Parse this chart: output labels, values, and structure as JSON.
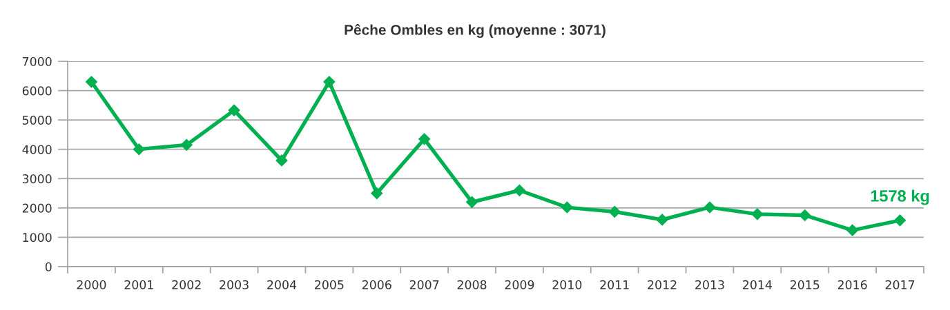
{
  "chart_data": {
    "type": "line",
    "title": "Pêche Ombles en kg (moyenne : 3071)",
    "categories": [
      "2000",
      "2001",
      "2002",
      "2003",
      "2004",
      "2005",
      "2006",
      "2007",
      "2008",
      "2009",
      "2010",
      "2011",
      "2012",
      "2013",
      "2014",
      "2015",
      "2016",
      "2017"
    ],
    "series": [
      {
        "color": "#00b050",
        "values": [
          6300,
          4000,
          4150,
          5330,
          3620,
          6300,
          2500,
          4350,
          2200,
          2600,
          2020,
          1870,
          1600,
          2020,
          1790,
          1750,
          1240,
          1578
        ]
      }
    ],
    "ylim": [
      0,
      7000
    ],
    "yticks": [
      0,
      1000,
      2000,
      3000,
      4000,
      5000,
      6000,
      7000
    ],
    "grid": "y",
    "marker": "diamond",
    "line_style": "solid",
    "annotations": [
      {
        "text": "1578 kg",
        "x": "2017",
        "y": 1578
      }
    ]
  }
}
